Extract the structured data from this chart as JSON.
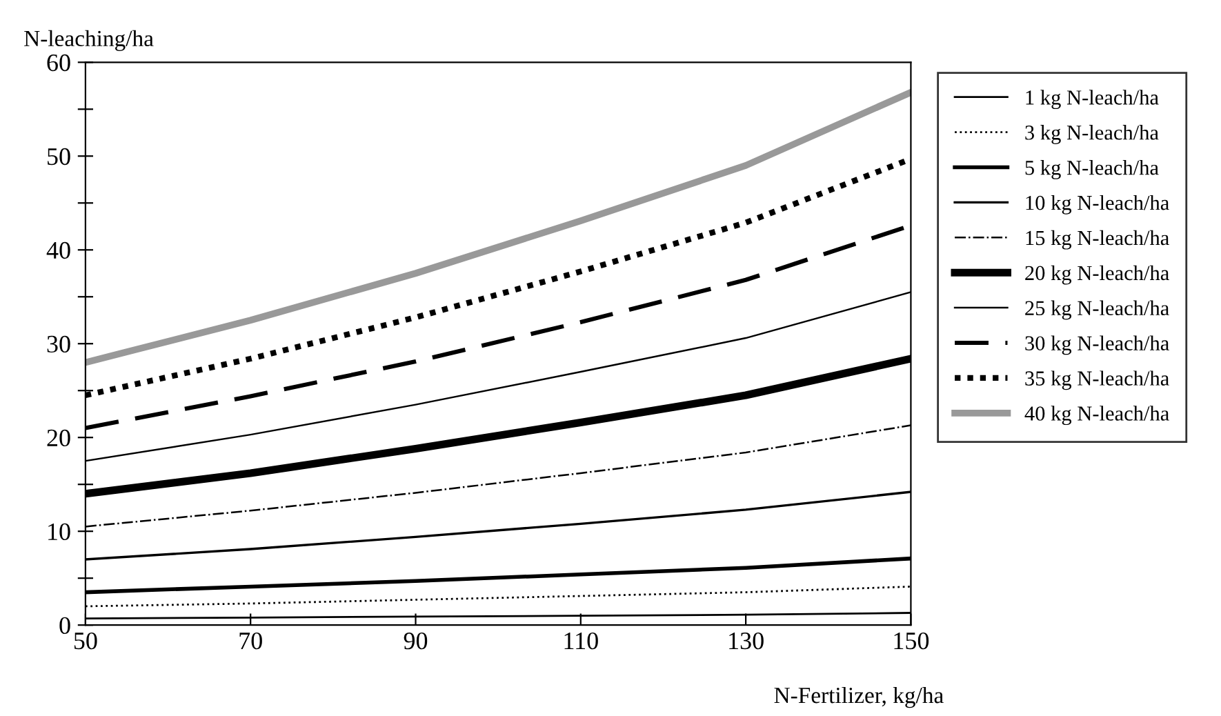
{
  "chart_data": {
    "type": "line",
    "xlabel": "N-Fertilizer, kg/ha",
    "ylabel": "N-leaching/ha",
    "x": [
      50,
      70,
      90,
      110,
      130,
      150
    ],
    "xlim": [
      50,
      150
    ],
    "xticks": [
      50,
      70,
      90,
      110,
      130,
      150
    ],
    "ylim": [
      0,
      60
    ],
    "yticks": [
      0,
      {
        "value": 5,
        "label": null
      },
      10,
      {
        "value": 15,
        "label": null
      },
      20,
      {
        "value": 25,
        "label": null
      },
      30,
      {
        "value": 35,
        "label": null
      },
      40,
      {
        "value": 45,
        "label": null
      },
      50,
      {
        "value": 55,
        "label": null
      },
      60
    ],
    "grid": false,
    "legend": "right",
    "marker": "none",
    "series": [
      {
        "name": "1 kg N-leach/ha",
        "color": "#000000",
        "line_style": "solid",
        "values": [
          0.7,
          0.8,
          0.9,
          1.0,
          1.1,
          1.3
        ]
      },
      {
        "name": "3 kg N-leach/ha",
        "color": "#000000",
        "line_style": "dotted",
        "values": [
          2.0,
          2.3,
          2.7,
          3.1,
          3.5,
          4.1
        ]
      },
      {
        "name": "5 kg N-leach/ha",
        "color": "#000000",
        "line_style": "solid",
        "values": [
          3.5,
          4.1,
          4.7,
          5.4,
          6.1,
          7.1
        ]
      },
      {
        "name": "10 kg N-leach/ha",
        "color": "#000000",
        "line_style": "solid",
        "values": [
          7.0,
          8.1,
          9.4,
          10.8,
          12.3,
          14.2
        ]
      },
      {
        "name": "15 kg N-leach/ha",
        "color": "#000000",
        "line_style": "dashdot",
        "values": [
          10.5,
          12.2,
          14.1,
          16.2,
          18.4,
          21.3
        ]
      },
      {
        "name": "20 kg N-leach/ha",
        "color": "#000000",
        "line_style": "solid",
        "values": [
          14.0,
          16.2,
          18.8,
          21.6,
          24.5,
          28.4
        ]
      },
      {
        "name": "25 kg N-leach/ha",
        "color": "#000000",
        "line_style": "solid",
        "values": [
          17.5,
          20.3,
          23.5,
          27.0,
          30.6,
          35.5
        ]
      },
      {
        "name": "30 kg N-leach/ha",
        "color": "#000000",
        "line_style": "dashed",
        "values": [
          21.0,
          24.4,
          28.1,
          32.3,
          36.8,
          42.6
        ]
      },
      {
        "name": "35 kg N-leach/ha",
        "color": "#000000",
        "line_style": "dotted",
        "values": [
          24.5,
          28.4,
          32.8,
          37.7,
          42.9,
          49.7
        ]
      },
      {
        "name": "40 kg N-leach/ha",
        "color": "#999999",
        "line_style": "solid",
        "values": [
          28.0,
          32.5,
          37.5,
          43.1,
          49.0,
          56.8
        ]
      }
    ]
  }
}
